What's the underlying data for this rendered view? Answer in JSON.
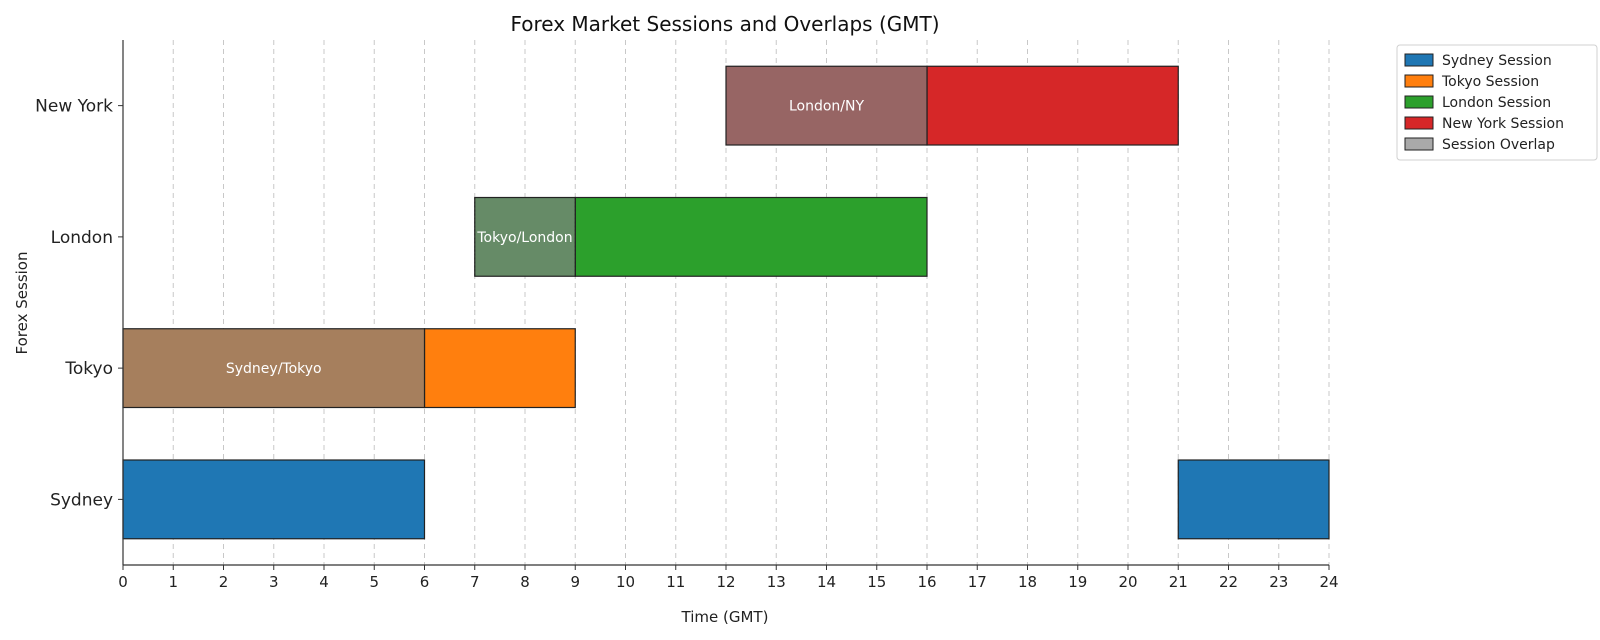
{
  "chart_data": {
    "type": "bar",
    "orientation": "horizontal",
    "title": "Forex Market Sessions and Overlaps (GMT)",
    "xlabel": "Time (GMT)",
    "ylabel": "Forex Session",
    "xlim": [
      0,
      24
    ],
    "xticks": [
      0,
      1,
      2,
      3,
      4,
      5,
      6,
      7,
      8,
      9,
      10,
      11,
      12,
      13,
      14,
      15,
      16,
      17,
      18,
      19,
      20,
      21,
      22,
      23,
      24
    ],
    "categories": [
      "Sydney",
      "Tokyo",
      "London",
      "New York"
    ],
    "grid": "vertical dashed",
    "legend_position": "upper right, outside",
    "colors": {
      "sydney": "#1f77b4",
      "tokyo": "#ff7f0e",
      "london": "#2ca02c",
      "new_york": "#d62728",
      "overlap": "#a9a9a9"
    },
    "series": [
      {
        "name": "Sydney Session",
        "color": "#1f77b4",
        "segments": [
          {
            "category": "Sydney",
            "start": 0,
            "end": 6
          },
          {
            "category": "Sydney",
            "start": 21,
            "end": 24
          }
        ]
      },
      {
        "name": "Tokyo Session",
        "color": "#ff7f0e",
        "segments": [
          {
            "category": "Tokyo",
            "start": 6,
            "end": 9
          }
        ]
      },
      {
        "name": "London Session",
        "color": "#2ca02c",
        "segments": [
          {
            "category": "London",
            "start": 9,
            "end": 16
          }
        ]
      },
      {
        "name": "New York Session",
        "color": "#d62728",
        "segments": [
          {
            "category": "New York",
            "start": 16,
            "end": 21
          }
        ]
      },
      {
        "name": "Session Overlap",
        "color": "#a9a9a9",
        "segments": []
      }
    ],
    "overlaps": [
      {
        "category": "Tokyo",
        "start": 0,
        "end": 6,
        "label": "Sydney/Tokyo",
        "color": "#a67f5d"
      },
      {
        "category": "London",
        "start": 7,
        "end": 9,
        "label": "Tokyo/London",
        "color": "#668b67"
      },
      {
        "category": "New York",
        "start": 12,
        "end": 16,
        "label": "London/NY",
        "color": "#976564"
      }
    ]
  }
}
